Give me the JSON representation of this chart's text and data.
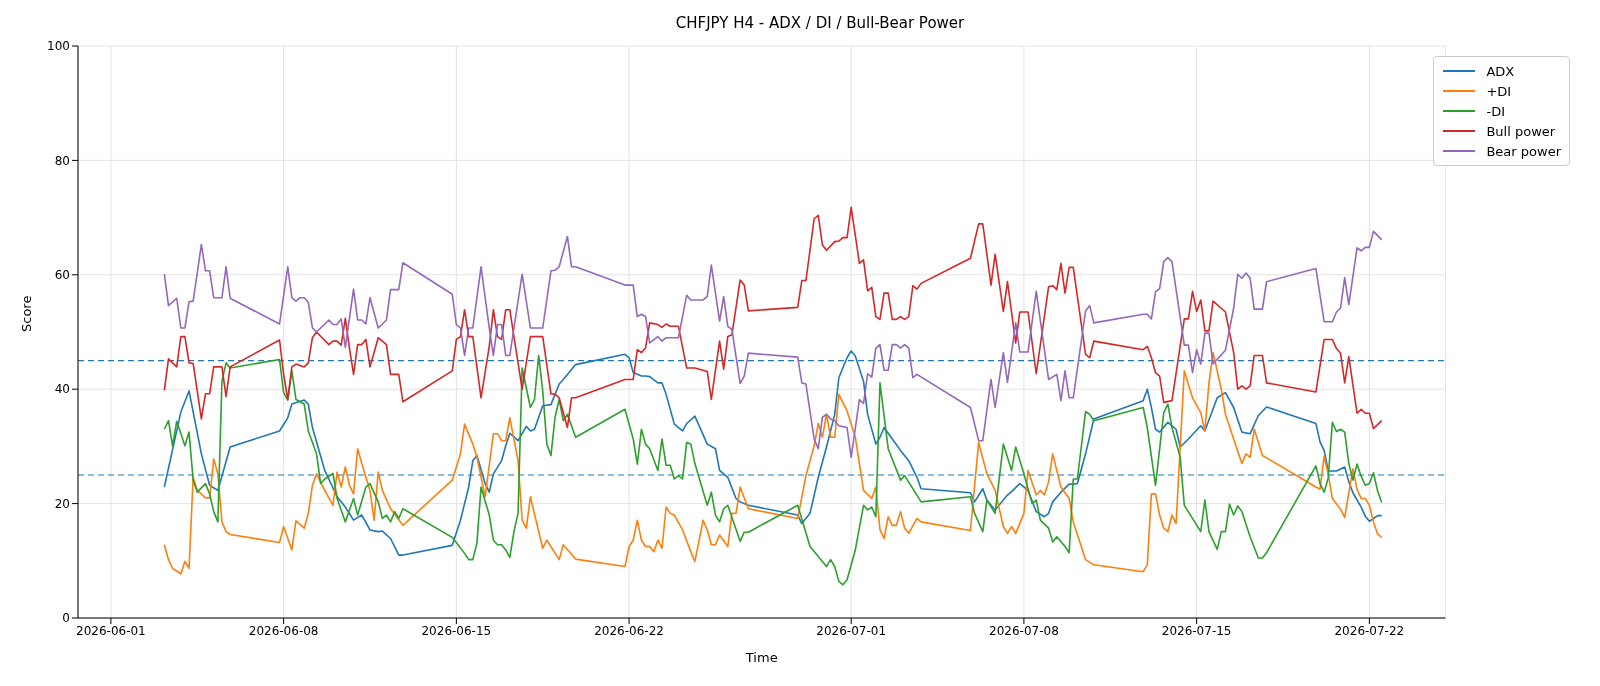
{
  "chart_data": {
    "type": "line",
    "title": "CHFJPY H4 - ADX / DI / Bull-Bear Power",
    "xlabel": "Time",
    "ylabel": "Score",
    "xlim": [
      "2026-05-30T16:00",
      "2026-07-25T02:00"
    ],
    "xticks": [
      "2026-06-01",
      "2026-06-08",
      "2026-06-15",
      "2026-06-22",
      "2026-07-01",
      "2026-07-08",
      "2026-07-15",
      "2026-07-22"
    ],
    "ylim": [
      0,
      100
    ],
    "yticks": [
      0,
      20,
      40,
      60,
      80,
      100
    ],
    "grid": true,
    "legend": "top right",
    "ref_lines": [
      {
        "axis": "y",
        "value": 45,
        "color": "#1f77b4",
        "line_style": "dashed"
      },
      {
        "axis": "y",
        "value": 25,
        "color": "#1f77b4",
        "line_style": "dashed"
      }
    ],
    "series": [
      {
        "name": "ADX",
        "color": "#1f77b4",
        "x": [
          "2026-06-03T04:00",
          "2026-06-03T20:00",
          "2026-06-04T04:00",
          "2026-06-04T16:00",
          "2026-06-05T00:00",
          "2026-06-05T08:00",
          "2026-06-05T20:00",
          "2026-06-07T20:00",
          "2026-06-08T04:00",
          "2026-06-08T08:00",
          "2026-06-08T20:00",
          "2026-06-09T00:00",
          "2026-06-09T04:00",
          "2026-06-09T16:00",
          "2026-06-10T04:00",
          "2026-06-10T12:00",
          "2026-06-10T20:00",
          "2026-06-11T04:00",
          "2026-06-11T12:00",
          "2026-06-11T20:00",
          "2026-06-12T00:00",
          "2026-06-12T08:00",
          "2026-06-12T16:00",
          "2026-06-12T20:00",
          "2026-06-14T20:00",
          "2026-06-15T04:00",
          "2026-06-15T12:00",
          "2026-06-15T16:00",
          "2026-06-15T20:00",
          "2026-06-16T04:00",
          "2026-06-16T08:00",
          "2026-06-16T12:00",
          "2026-06-16T20:00",
          "2026-06-17T00:00",
          "2026-06-17T04:00",
          "2026-06-17T12:00",
          "2026-06-17T20:00",
          "2026-06-18T00:00",
          "2026-06-18T04:00",
          "2026-06-18T12:00",
          "2026-06-18T20:00",
          "2026-06-19T04:00",
          "2026-06-19T08:00",
          "2026-06-19T20:00",
          "2026-06-21T20:00",
          "2026-06-22T00:00",
          "2026-06-22T04:00",
          "2026-06-22T12:00",
          "2026-06-22T16:00",
          "2026-06-22T20:00",
          "2026-06-23T04:00",
          "2026-06-23T08:00",
          "2026-06-23T12:00",
          "2026-06-23T20:00",
          "2026-06-24T04:00",
          "2026-06-24T08:00",
          "2026-06-24T16:00",
          "2026-06-25T04:00",
          "2026-06-25T12:00",
          "2026-06-25T16:00",
          "2026-06-26T00:00",
          "2026-06-26T08:00",
          "2026-06-26T12:00",
          "2026-06-26T20:00",
          "2026-06-28T20:00",
          "2026-06-29T00:00",
          "2026-06-29T08:00",
          "2026-06-29T16:00",
          "2026-06-30T00:00",
          "2026-06-30T08:00",
          "2026-06-30T12:00",
          "2026-06-30T20:00",
          "2026-07-01T00:00",
          "2026-07-01T04:00",
          "2026-07-01T12:00",
          "2026-07-01T16:00",
          "2026-07-02T00:00",
          "2026-07-02T04:00",
          "2026-07-02T08:00",
          "2026-07-02T16:00",
          "2026-07-03T00:00",
          "2026-07-03T08:00",
          "2026-07-03T16:00",
          "2026-07-03T20:00",
          "2026-07-05T20:00",
          "2026-07-06T00:00",
          "2026-07-06T08:00",
          "2026-07-06T12:00",
          "2026-07-06T20:00",
          "2026-07-07T08:00",
          "2026-07-07T12:00",
          "2026-07-07T20:00",
          "2026-07-08T04:00",
          "2026-07-08T12:00",
          "2026-07-08T20:00",
          "2026-07-09T00:00",
          "2026-07-09T04:00",
          "2026-07-09T12:00",
          "2026-07-09T20:00",
          "2026-07-10T00:00",
          "2026-07-10T04:00",
          "2026-07-10T12:00",
          "2026-07-10T20:00",
          "2026-07-12T20:00",
          "2026-07-13T00:00",
          "2026-07-13T04:00",
          "2026-07-13T08:00",
          "2026-07-13T12:00",
          "2026-07-13T20:00",
          "2026-07-14T04:00",
          "2026-07-14T08:00",
          "2026-07-14T16:00",
          "2026-07-15T04:00",
          "2026-07-15T08:00",
          "2026-07-15T20:00",
          "2026-07-16T04:00",
          "2026-07-16T12:00",
          "2026-07-16T20:00",
          "2026-07-17T04:00",
          "2026-07-17T12:00",
          "2026-07-17T20:00",
          "2026-07-19T20:00",
          "2026-07-20T00:00",
          "2026-07-20T04:00",
          "2026-07-20T08:00",
          "2026-07-20T16:00",
          "2026-07-21T00:00",
          "2026-07-21T04:00",
          "2026-07-21T08:00",
          "2026-07-21T16:00",
          "2026-07-21T20:00",
          "2026-07-22T00:00",
          "2026-07-22T04:00",
          "2026-07-22T08:00",
          "2026-07-22T12:00"
        ],
        "values": [
          22.9,
          36.0,
          39.7,
          28.7,
          23.2,
          22.3,
          29.9,
          32.7,
          35.0,
          37.4,
          38.1,
          37.4,
          33.3,
          25.8,
          21.2,
          19.4,
          17.1,
          18.0,
          15.4,
          15.1,
          15.2,
          13.9,
          11.0,
          11.0,
          12.7,
          17.1,
          22.9,
          27.5,
          28.4,
          23.5,
          22.0,
          25.2,
          27.5,
          30.1,
          32.3,
          31.0,
          33.5,
          32.7,
          33.0,
          37.1,
          37.3,
          40.9,
          41.7,
          44.3,
          46.1,
          45.5,
          42.9,
          42.3,
          42.3,
          42.2,
          41.1,
          41.1,
          39.1,
          33.9,
          32.7,
          34.0,
          35.3,
          30.4,
          29.6,
          25.8,
          24.6,
          20.9,
          20.3,
          19.7,
          18.0,
          16.5,
          18.3,
          24.6,
          29.9,
          35.6,
          42.0,
          45.5,
          46.7,
          45.8,
          41.4,
          35.6,
          30.4,
          31.6,
          33.3,
          31.3,
          29.3,
          27.5,
          24.6,
          22.6,
          21.9,
          20.3,
          22.6,
          20.6,
          18.9,
          21.5,
          22.1,
          23.5,
          22.3,
          18.6,
          17.7,
          18.3,
          20.3,
          22.0,
          23.4,
          23.4,
          23.5,
          28.7,
          34.8,
          38.0,
          40.0,
          36.8,
          33.0,
          32.5,
          34.2,
          33.0,
          29.9,
          31.3,
          33.6,
          32.7,
          38.5,
          39.4,
          36.8,
          32.5,
          32.2,
          35.4,
          36.9,
          34.0,
          30.8,
          29.3,
          25.7,
          25.7,
          26.4,
          23.8,
          21.9,
          19.4,
          17.8,
          16.9,
          17.4,
          17.9,
          17.9
        ]
      },
      {
        "name": "+DI",
        "color": "#ff7f0e",
        "x": [
          "2026-06-03T04:00",
          "2026-06-03T08:00",
          "2026-06-03T12:00",
          "2026-06-03T20:00",
          "2026-06-04T00:00",
          "2026-06-04T04:00",
          "2026-06-04T08:00",
          "2026-06-04T12:00",
          "2026-06-04T20:00",
          "2026-06-05T00:00",
          "2026-06-05T04:00",
          "2026-06-05T08:00",
          "2026-06-05T12:00",
          "2026-06-05T16:00",
          "2026-06-05T20:00",
          "2026-06-07T20:00",
          "2026-06-08T00:00",
          "2026-06-08T08:00",
          "2026-06-08T12:00",
          "2026-06-08T20:00",
          "2026-06-09T00:00",
          "2026-06-09T04:00",
          "2026-06-09T08:00",
          "2026-06-09T16:00",
          "2026-06-10T00:00",
          "2026-06-10T04:00",
          "2026-06-10T08:00",
          "2026-06-10T12:00",
          "2026-06-10T16:00",
          "2026-06-10T20:00",
          "2026-06-11T00:00",
          "2026-06-11T04:00",
          "2026-06-11T12:00",
          "2026-06-11T16:00",
          "2026-06-11T20:00",
          "2026-06-12T00:00",
          "2026-06-12T08:00",
          "2026-06-12T20:00",
          "2026-06-14T20:00",
          "2026-06-15T04:00",
          "2026-06-15T08:00",
          "2026-06-15T16:00",
          "2026-06-15T20:00",
          "2026-06-16T04:00",
          "2026-06-16T12:00",
          "2026-06-16T16:00",
          "2026-06-16T20:00",
          "2026-06-17T00:00",
          "2026-06-17T04:00",
          "2026-06-17T12:00",
          "2026-06-17T16:00",
          "2026-06-17T20:00",
          "2026-06-18T00:00",
          "2026-06-18T12:00",
          "2026-06-18T16:00",
          "2026-06-19T04:00",
          "2026-06-19T08:00",
          "2026-06-19T20:00",
          "2026-06-21T20:00",
          "2026-06-22T00:00",
          "2026-06-22T04:00",
          "2026-06-22T08:00",
          "2026-06-22T12:00",
          "2026-06-22T16:00",
          "2026-06-22T20:00",
          "2026-06-23T00:00",
          "2026-06-23T04:00",
          "2026-06-23T08:00",
          "2026-06-23T12:00",
          "2026-06-23T16:00",
          "2026-06-23T20:00",
          "2026-06-24T04:00",
          "2026-06-24T12:00",
          "2026-06-24T16:00",
          "2026-06-25T00:00",
          "2026-06-25T04:00",
          "2026-06-25T08:00",
          "2026-06-25T12:00",
          "2026-06-25T16:00",
          "2026-06-26T00:00",
          "2026-06-26T04:00",
          "2026-06-26T08:00",
          "2026-06-26T12:00",
          "2026-06-26T20:00",
          "2026-06-28T20:00",
          "2026-06-29T04:00",
          "2026-06-29T12:00",
          "2026-06-29T16:00",
          "2026-06-29T20:00",
          "2026-06-30T00:00",
          "2026-06-30T04:00",
          "2026-06-30T08:00",
          "2026-06-30T12:00",
          "2026-06-30T20:00",
          "2026-07-01T04:00",
          "2026-07-01T08:00",
          "2026-07-01T12:00",
          "2026-07-01T20:00",
          "2026-07-02T00:00",
          "2026-07-02T04:00",
          "2026-07-02T08:00",
          "2026-07-02T12:00",
          "2026-07-02T16:00",
          "2026-07-02T20:00",
          "2026-07-03T00:00",
          "2026-07-03T04:00",
          "2026-07-03T08:00",
          "2026-07-03T16:00",
          "2026-07-03T20:00",
          "2026-07-05T20:00",
          "2026-07-06T04:00",
          "2026-07-06T12:00",
          "2026-07-06T20:00",
          "2026-07-07T04:00",
          "2026-07-07T08:00",
          "2026-07-07T12:00",
          "2026-07-07T16:00",
          "2026-07-08T00:00",
          "2026-07-08T04:00",
          "2026-07-08T12:00",
          "2026-07-08T16:00",
          "2026-07-08T20:00",
          "2026-07-09T00:00",
          "2026-07-09T04:00",
          "2026-07-09T12:00",
          "2026-07-09T20:00",
          "2026-07-10T00:00",
          "2026-07-10T12:00",
          "2026-07-10T20:00",
          "2026-07-12T20:00",
          "2026-07-13T00:00",
          "2026-07-13T04:00",
          "2026-07-13T08:00",
          "2026-07-13T12:00",
          "2026-07-13T16:00",
          "2026-07-13T20:00",
          "2026-07-14T00:00",
          "2026-07-14T04:00",
          "2026-07-14T12:00",
          "2026-07-14T20:00",
          "2026-07-15T04:00",
          "2026-07-15T08:00",
          "2026-07-15T12:00",
          "2026-07-15T16:00",
          "2026-07-16T00:00",
          "2026-07-16T04:00",
          "2026-07-16T12:00",
          "2026-07-16T20:00",
          "2026-07-17T00:00",
          "2026-07-17T04:00",
          "2026-07-17T08:00",
          "2026-07-17T16:00",
          "2026-07-17T20:00",
          "2026-07-19T20:00",
          "2026-07-20T00:00",
          "2026-07-20T04:00",
          "2026-07-20T08:00",
          "2026-07-20T12:00",
          "2026-07-20T20:00",
          "2026-07-21T00:00",
          "2026-07-21T08:00",
          "2026-07-21T12:00",
          "2026-07-21T16:00",
          "2026-07-21T20:00",
          "2026-07-22T00:00",
          "2026-07-22T04:00",
          "2026-07-22T08:00",
          "2026-07-22T12:00"
        ],
        "values": [
          12.8,
          10.2,
          8.7,
          7.7,
          9.9,
          8.7,
          24.6,
          22.3,
          21.0,
          21.0,
          27.8,
          25.2,
          16.8,
          15.1,
          14.6,
          13.2,
          16.0,
          11.9,
          17.0,
          15.7,
          18.3,
          23.2,
          25.2,
          22.3,
          19.7,
          25.5,
          22.9,
          26.4,
          23.2,
          21.7,
          29.6,
          27.0,
          22.3,
          17.1,
          25.5,
          22.3,
          19.1,
          16.2,
          24.1,
          28.7,
          33.9,
          30.4,
          28.1,
          21.2,
          32.2,
          32.2,
          31.0,
          31.0,
          35.0,
          27.5,
          17.1,
          15.7,
          21.2,
          12.2,
          13.6,
          10.2,
          12.8,
          10.3,
          9.0,
          12.5,
          13.6,
          17.1,
          13.6,
          12.5,
          12.5,
          11.6,
          13.6,
          12.2,
          19.4,
          18.3,
          18.0,
          15.4,
          11.6,
          9.9,
          17.1,
          15.4,
          12.8,
          12.8,
          14.5,
          12.5,
          18.3,
          18.3,
          22.9,
          19.1,
          17.4,
          24.9,
          30.1,
          34.0,
          31.6,
          35.6,
          31.6,
          31.6,
          39.1,
          36.2,
          31.6,
          27.0,
          22.3,
          20.9,
          22.9,
          15.4,
          13.9,
          17.7,
          16.2,
          16.2,
          18.6,
          15.7,
          14.8,
          17.4,
          16.8,
          15.3,
          30.7,
          25.2,
          22.3,
          16.0,
          14.8,
          16.0,
          14.8,
          18.3,
          25.8,
          21.5,
          22.3,
          21.5,
          23.8,
          28.7,
          22.9,
          20.9,
          16.8,
          10.2,
          9.3,
          8.1,
          9.3,
          21.7,
          21.7,
          18.0,
          15.7,
          15.1,
          18.0,
          16.5,
          43.2,
          38.5,
          35.9,
          32.7,
          41.1,
          46.4,
          40.0,
          35.6,
          31.3,
          27.0,
          28.7,
          28.1,
          33.0,
          28.4,
          28.0,
          22.9,
          22.5,
          28.3,
          25.1,
          20.9,
          19.0,
          17.6,
          26.1,
          22.5,
          20.9,
          20.9,
          19.7,
          16.8,
          14.7,
          14.1
        ]
      },
      {
        "name": "-DI",
        "color": "#2ca02c",
        "x": [
          "2026-06-03T04:00",
          "2026-06-03T08:00",
          "2026-06-03T12:00",
          "2026-06-03T16:00",
          "2026-06-04T00:00",
          "2026-06-04T04:00",
          "2026-06-04T08:00",
          "2026-06-04T12:00",
          "2026-06-04T20:00",
          "2026-06-05T00:00",
          "2026-06-05T04:00",
          "2026-06-05T08:00",
          "2026-06-05T12:00",
          "2026-06-05T16:00",
          "2026-06-05T20:00",
          "2026-06-07T20:00",
          "2026-06-08T00:00",
          "2026-06-08T04:00",
          "2026-06-08T08:00",
          "2026-06-08T12:00",
          "2026-06-08T20:00",
          "2026-06-09T00:00",
          "2026-06-09T08:00",
          "2026-06-09T12:00",
          "2026-06-09T16:00",
          "2026-06-10T00:00",
          "2026-06-10T04:00",
          "2026-06-10T12:00",
          "2026-06-10T20:00",
          "2026-06-11T00:00",
          "2026-06-11T08:00",
          "2026-06-11T12:00",
          "2026-06-11T20:00",
          "2026-06-12T00:00",
          "2026-06-12T04:00",
          "2026-06-12T08:00",
          "2026-06-12T12:00",
          "2026-06-12T16:00",
          "2026-06-12T20:00",
          "2026-06-14T20:00",
          "2026-06-15T08:00",
          "2026-06-15T12:00",
          "2026-06-15T16:00",
          "2026-06-15T20:00",
          "2026-06-16T00:00",
          "2026-06-16T08:00",
          "2026-06-16T12:00",
          "2026-06-16T16:00",
          "2026-06-16T20:00",
          "2026-06-17T00:00",
          "2026-06-17T04:00",
          "2026-06-17T08:00",
          "2026-06-17T12:00",
          "2026-06-17T16:00",
          "2026-06-18T00:00",
          "2026-06-18T04:00",
          "2026-06-18T08:00",
          "2026-06-18T12:00",
          "2026-06-18T16:00",
          "2026-06-18T20:00",
          "2026-06-19T00:00",
          "2026-06-19T04:00",
          "2026-06-19T08:00",
          "2026-06-19T12:00",
          "2026-06-19T20:00",
          "2026-06-21T20:00",
          "2026-06-22T04:00",
          "2026-06-22T08:00",
          "2026-06-22T12:00",
          "2026-06-22T16:00",
          "2026-06-22T20:00",
          "2026-06-23T04:00",
          "2026-06-23T08:00",
          "2026-06-23T12:00",
          "2026-06-23T16:00",
          "2026-06-23T20:00",
          "2026-06-24T00:00",
          "2026-06-24T04:00",
          "2026-06-24T08:00",
          "2026-06-24T12:00",
          "2026-06-24T16:00",
          "2026-06-25T04:00",
          "2026-06-25T08:00",
          "2026-06-25T12:00",
          "2026-06-25T16:00",
          "2026-06-25T20:00",
          "2026-06-26T00:00",
          "2026-06-26T12:00",
          "2026-06-26T16:00",
          "2026-06-26T20:00",
          "2026-06-28T20:00",
          "2026-06-29T08:00",
          "2026-06-30T00:00",
          "2026-06-30T04:00",
          "2026-06-30T08:00",
          "2026-06-30T12:00",
          "2026-06-30T16:00",
          "2026-06-30T20:00",
          "2026-07-01T04:00",
          "2026-07-01T12:00",
          "2026-07-01T16:00",
          "2026-07-01T20:00",
          "2026-07-02T00:00",
          "2026-07-02T04:00",
          "2026-07-02T12:00",
          "2026-07-03T00:00",
          "2026-07-03T04:00",
          "2026-07-03T20:00",
          "2026-07-05T20:00",
          "2026-07-06T00:00",
          "2026-07-06T08:00",
          "2026-07-06T12:00",
          "2026-07-06T20:00",
          "2026-07-07T04:00",
          "2026-07-07T12:00",
          "2026-07-07T16:00",
          "2026-07-08T00:00",
          "2026-07-08T08:00",
          "2026-07-08T12:00",
          "2026-07-08T16:00",
          "2026-07-09T00:00",
          "2026-07-09T04:00",
          "2026-07-09T08:00",
          "2026-07-09T16:00",
          "2026-07-09T20:00",
          "2026-07-10T00:00",
          "2026-07-10T04:00",
          "2026-07-10T12:00",
          "2026-07-10T16:00",
          "2026-07-10T20:00",
          "2026-07-12T20:00",
          "2026-07-13T00:00",
          "2026-07-13T08:00",
          "2026-07-13T16:00",
          "2026-07-13T20:00",
          "2026-07-14T00:00",
          "2026-07-14T08:00",
          "2026-07-14T12:00",
          "2026-07-15T04:00",
          "2026-07-15T08:00",
          "2026-07-15T12:00",
          "2026-07-15T20:00",
          "2026-07-16T00:00",
          "2026-07-16T04:00",
          "2026-07-16T08:00",
          "2026-07-16T12:00",
          "2026-07-16T16:00",
          "2026-07-16T20:00",
          "2026-07-17T04:00",
          "2026-07-17T12:00",
          "2026-07-17T16:00",
          "2026-07-17T20:00",
          "2026-07-19T20:00",
          "2026-07-20T00:00",
          "2026-07-20T04:00",
          "2026-07-20T08:00",
          "2026-07-20T12:00",
          "2026-07-20T16:00",
          "2026-07-20T20:00",
          "2026-07-21T00:00",
          "2026-07-21T04:00",
          "2026-07-21T08:00",
          "2026-07-21T12:00",
          "2026-07-21T16:00",
          "2026-07-21T20:00",
          "2026-07-22T00:00",
          "2026-07-22T04:00",
          "2026-07-22T08:00",
          "2026-07-22T12:00"
        ],
        "values": [
          33.0,
          34.5,
          30.1,
          34.4,
          30.1,
          32.5,
          24.1,
          22.0,
          23.5,
          21.7,
          18.6,
          16.8,
          41.4,
          44.6,
          43.7,
          45.2,
          39.4,
          38.1,
          43.2,
          38.2,
          37.4,
          32.7,
          28.7,
          23.5,
          24.3,
          25.3,
          20.9,
          16.8,
          20.9,
          18.0,
          22.9,
          23.5,
          20.3,
          17.4,
          18.0,
          16.8,
          18.6,
          17.4,
          19.1,
          14.1,
          11.3,
          10.2,
          10.2,
          13.1,
          22.9,
          18.0,
          13.6,
          12.8,
          12.8,
          11.9,
          10.6,
          15.1,
          18.3,
          43.7,
          36.8,
          38.2,
          45.9,
          39.7,
          30.4,
          28.4,
          35.1,
          38.2,
          34.5,
          35.6,
          31.6,
          36.5,
          31.3,
          26.9,
          33.0,
          30.4,
          29.6,
          25.8,
          31.3,
          26.7,
          26.7,
          24.3,
          24.9,
          24.3,
          30.7,
          30.4,
          27.0,
          19.7,
          22.0,
          18.0,
          16.8,
          19.1,
          19.7,
          13.4,
          15.0,
          15.0,
          19.7,
          12.5,
          9.0,
          10.2,
          9.0,
          6.4,
          5.8,
          6.7,
          11.9,
          19.7,
          18.9,
          19.4,
          17.7,
          41.1,
          29.6,
          24.1,
          24.9,
          20.3,
          21.2,
          18.3,
          15.1,
          20.6,
          18.3,
          30.4,
          25.8,
          29.9,
          25.2,
          20.0,
          20.6,
          17.1,
          15.7,
          13.3,
          14.2,
          12.5,
          11.4,
          24.3,
          24.3,
          36.1,
          35.6,
          34.5,
          36.8,
          33.3,
          23.2,
          35.9,
          37.4,
          33.3,
          28.1,
          19.7,
          15.1,
          20.6,
          15.1,
          12.0,
          15.1,
          15.1,
          19.9,
          18.0,
          19.6,
          18.6,
          14.2,
          10.5,
          10.5,
          11.4,
          26.6,
          23.5,
          22.0,
          24.5,
          34.2,
          32.6,
          33.0,
          32.5,
          27.0,
          24.1,
          26.9,
          24.8,
          23.2,
          23.5,
          25.4,
          22.2,
          20.2
        ]
      },
      {
        "name": "Bull power",
        "color": "#d62728",
        "x": [
          "2026-06-03T04:00",
          "2026-06-03T08:00",
          "2026-06-03T16:00",
          "2026-06-03T20:00",
          "2026-06-04T00:00",
          "2026-06-04T04:00",
          "2026-06-04T08:00",
          "2026-06-04T16:00",
          "2026-06-04T20:00",
          "2026-06-05T00:00",
          "2026-06-05T04:00",
          "2026-06-05T12:00",
          "2026-06-05T16:00",
          "2026-06-05T20:00",
          "2026-06-07T20:00",
          "2026-06-08T00:00",
          "2026-06-08T04:00",
          "2026-06-08T08:00",
          "2026-06-08T12:00",
          "2026-06-08T20:00",
          "2026-06-09T00:00",
          "2026-06-09T04:00",
          "2026-06-09T08:00",
          "2026-06-09T20:00",
          "2026-06-10T00:00",
          "2026-06-10T04:00",
          "2026-06-10T08:00",
          "2026-06-10T12:00",
          "2026-06-10T16:00",
          "2026-06-10T20:00",
          "2026-06-11T00:00",
          "2026-06-11T04:00",
          "2026-06-11T08:00",
          "2026-06-11T12:00",
          "2026-06-11T20:00",
          "2026-06-12T04:00",
          "2026-06-12T08:00",
          "2026-06-12T16:00",
          "2026-06-12T20:00",
          "2026-06-14T20:00",
          "2026-06-15T00:00",
          "2026-06-15T04:00",
          "2026-06-15T08:00",
          "2026-06-15T12:00",
          "2026-06-15T16:00",
          "2026-06-16T00:00",
          "2026-06-16T08:00",
          "2026-06-16T12:00",
          "2026-06-16T16:00",
          "2026-06-16T20:00",
          "2026-06-17T00:00",
          "2026-06-17T04:00",
          "2026-06-17T08:00",
          "2026-06-17T16:00",
          "2026-06-18T00:00",
          "2026-06-18T12:00",
          "2026-06-18T20:00",
          "2026-06-19T00:00",
          "2026-06-19T04:00",
          "2026-06-19T12:00",
          "2026-06-19T16:00",
          "2026-06-19T20:00",
          "2026-06-21T20:00",
          "2026-06-22T04:00",
          "2026-06-22T08:00",
          "2026-06-22T12:00",
          "2026-06-22T16:00",
          "2026-06-22T20:00",
          "2026-06-23T04:00",
          "2026-06-23T08:00",
          "2026-06-23T12:00",
          "2026-06-23T16:00",
          "2026-06-24T00:00",
          "2026-06-24T08:00",
          "2026-06-24T16:00",
          "2026-06-25T04:00",
          "2026-06-25T08:00",
          "2026-06-25T16:00",
          "2026-06-25T20:00",
          "2026-06-26T00:00",
          "2026-06-26T04:00",
          "2026-06-26T12:00",
          "2026-06-26T16:00",
          "2026-06-26T20:00",
          "2026-06-28T20:00",
          "2026-06-29T00:00",
          "2026-06-29T04:00",
          "2026-06-29T12:00",
          "2026-06-29T16:00",
          "2026-06-29T20:00",
          "2026-06-30T00:00",
          "2026-06-30T08:00",
          "2026-06-30T12:00",
          "2026-06-30T16:00",
          "2026-06-30T20:00",
          "2026-07-01T00:00",
          "2026-07-01T08:00",
          "2026-07-01T12:00",
          "2026-07-01T16:00",
          "2026-07-01T20:00",
          "2026-07-02T00:00",
          "2026-07-02T04:00",
          "2026-07-02T08:00",
          "2026-07-02T12:00",
          "2026-07-02T16:00",
          "2026-07-02T20:00",
          "2026-07-03T00:00",
          "2026-07-03T04:00",
          "2026-07-03T08:00",
          "2026-07-03T12:00",
          "2026-07-03T16:00",
          "2026-07-03T20:00",
          "2026-07-05T20:00",
          "2026-07-06T04:00",
          "2026-07-06T08:00",
          "2026-07-06T16:00",
          "2026-07-06T20:00",
          "2026-07-07T04:00",
          "2026-07-07T08:00",
          "2026-07-07T16:00",
          "2026-07-07T20:00",
          "2026-07-08T04:00",
          "2026-07-08T12:00",
          "2026-07-09T00:00",
          "2026-07-09T04:00",
          "2026-07-09T08:00",
          "2026-07-09T12:00",
          "2026-07-09T16:00",
          "2026-07-09T20:00",
          "2026-07-10T00:00",
          "2026-07-10T12:00",
          "2026-07-10T16:00",
          "2026-07-10T20:00",
          "2026-07-12T20:00",
          "2026-07-13T00:00",
          "2026-07-13T04:00",
          "2026-07-13T08:00",
          "2026-07-13T12:00",
          "2026-07-13T16:00",
          "2026-07-14T00:00",
          "2026-07-14T12:00",
          "2026-07-14T16:00",
          "2026-07-14T20:00",
          "2026-07-15T00:00",
          "2026-07-15T04:00",
          "2026-07-15T08:00",
          "2026-07-15T12:00",
          "2026-07-15T16:00",
          "2026-07-16T04:00",
          "2026-07-16T12:00",
          "2026-07-16T16:00",
          "2026-07-16T20:00",
          "2026-07-17T00:00",
          "2026-07-17T04:00",
          "2026-07-17T08:00",
          "2026-07-17T16:00",
          "2026-07-17T20:00",
          "2026-07-19T20:00",
          "2026-07-20T04:00",
          "2026-07-20T12:00",
          "2026-07-20T16:00",
          "2026-07-20T20:00",
          "2026-07-21T00:00",
          "2026-07-21T04:00",
          "2026-07-21T12:00",
          "2026-07-21T16:00",
          "2026-07-21T20:00",
          "2026-07-22T00:00",
          "2026-07-22T04:00",
          "2026-07-22T12:00"
        ],
        "values": [
          39.8,
          45.3,
          43.9,
          49.2,
          49.2,
          44.6,
          44.5,
          34.8,
          39.2,
          39.2,
          43.9,
          43.9,
          38.7,
          43.9,
          48.6,
          42.6,
          38.2,
          43.9,
          44.4,
          43.9,
          44.6,
          49.0,
          50.0,
          47.8,
          48.4,
          48.4,
          47.7,
          52.4,
          47.2,
          42.6,
          47.8,
          47.8,
          48.7,
          43.9,
          49.0,
          47.8,
          42.6,
          42.6,
          37.8,
          43.2,
          48.7,
          49.2,
          53.9,
          49.2,
          49.2,
          38.5,
          47.5,
          53.9,
          49.2,
          48.7,
          53.9,
          53.9,
          49.2,
          40.0,
          49.2,
          49.2,
          39.2,
          39.1,
          38.5,
          33.3,
          38.5,
          38.5,
          41.7,
          41.7,
          46.9,
          46.4,
          47.2,
          51.6,
          51.3,
          50.8,
          51.4,
          51.0,
          51.0,
          43.7,
          43.7,
          43.1,
          38.2,
          48.4,
          43.5,
          49.2,
          49.5,
          59.1,
          58.2,
          53.7,
          54.3,
          59.0,
          59.0,
          69.8,
          70.4,
          65.2,
          64.3,
          65.8,
          65.9,
          66.5,
          66.5,
          71.8,
          62.0,
          62.6,
          57.2,
          57.8,
          52.7,
          52.2,
          56.8,
          56.8,
          52.2,
          52.2,
          52.7,
          52.2,
          52.7,
          58.1,
          57.5,
          58.5,
          62.9,
          68.9,
          68.9,
          58.2,
          63.6,
          53.6,
          58.8,
          48.1,
          53.5,
          53.5,
          42.7,
          57.9,
          58.1,
          57.4,
          62.0,
          56.8,
          61.3,
          61.3,
          46.1,
          45.5,
          48.4,
          46.9,
          47.5,
          45.5,
          42.9,
          42.3,
          37.7,
          38.0,
          52.3,
          52.3,
          57.1,
          53.6,
          55.6,
          50.2,
          50.2,
          55.4,
          53.5,
          46.4,
          40.0,
          40.6,
          40.0,
          40.6,
          45.9,
          45.9,
          41.1,
          39.5,
          48.7,
          48.7,
          47.1,
          46.3,
          41.1,
          45.7,
          35.8,
          36.5,
          35.8,
          35.8,
          33.1,
          34.5
        ]
      },
      {
        "name": "Bear power",
        "color": "#9467bd",
        "x": [
          "2026-06-03T04:00",
          "2026-06-03T08:00",
          "2026-06-03T16:00",
          "2026-06-03T20:00",
          "2026-06-04T00:00",
          "2026-06-04T04:00",
          "2026-06-04T08:00",
          "2026-06-04T16:00",
          "2026-06-04T20:00",
          "2026-06-05T00:00",
          "2026-06-05T04:00",
          "2026-06-05T12:00",
          "2026-06-05T16:00",
          "2026-06-05T20:00",
          "2026-06-07T20:00",
          "2026-06-08T04:00",
          "2026-06-08T08:00",
          "2026-06-08T12:00",
          "2026-06-08T16:00",
          "2026-06-08T20:00",
          "2026-06-09T00:00",
          "2026-06-09T04:00",
          "2026-06-09T08:00",
          "2026-06-09T20:00",
          "2026-06-10T00:00",
          "2026-06-10T04:00",
          "2026-06-10T08:00",
          "2026-06-10T12:00",
          "2026-06-10T20:00",
          "2026-06-11T00:00",
          "2026-06-11T04:00",
          "2026-06-11T08:00",
          "2026-06-11T12:00",
          "2026-06-11T20:00",
          "2026-06-12T04:00",
          "2026-06-12T08:00",
          "2026-06-12T16:00",
          "2026-06-12T20:00",
          "2026-06-14T20:00",
          "2026-06-15T00:00",
          "2026-06-15T04:00",
          "2026-06-15T08:00",
          "2026-06-15T12:00",
          "2026-06-15T16:00",
          "2026-06-16T00:00",
          "2026-06-16T08:00",
          "2026-06-16T12:00",
          "2026-06-16T16:00",
          "2026-06-16T20:00",
          "2026-06-17T00:00",
          "2026-06-17T04:00",
          "2026-06-17T08:00",
          "2026-06-17T16:00",
          "2026-06-18T00:00",
          "2026-06-18T12:00",
          "2026-06-18T20:00",
          "2026-06-19T00:00",
          "2026-06-19T04:00",
          "2026-06-19T12:00",
          "2026-06-19T16:00",
          "2026-06-19T20:00",
          "2026-06-21T20:00",
          "2026-06-22T04:00",
          "2026-06-22T08:00",
          "2026-06-22T12:00",
          "2026-06-22T16:00",
          "2026-06-22T20:00",
          "2026-06-23T04:00",
          "2026-06-23T08:00",
          "2026-06-23T12:00",
          "2026-06-23T16:00",
          "2026-06-24T00:00",
          "2026-06-24T08:00",
          "2026-06-24T12:00",
          "2026-06-25T00:00",
          "2026-06-25T04:00",
          "2026-06-25T08:00",
          "2026-06-25T16:00",
          "2026-06-25T20:00",
          "2026-06-26T00:00",
          "2026-06-26T04:00",
          "2026-06-26T12:00",
          "2026-06-26T16:00",
          "2026-06-26T20:00",
          "2026-06-28T20:00",
          "2026-06-29T00:00",
          "2026-06-29T04:00",
          "2026-06-29T12:00",
          "2026-06-29T16:00",
          "2026-06-29T20:00",
          "2026-06-30T00:00",
          "2026-06-30T04:00",
          "2026-06-30T08:00",
          "2026-06-30T12:00",
          "2026-06-30T20:00",
          "2026-07-01T00:00",
          "2026-07-01T08:00",
          "2026-07-01T12:00",
          "2026-07-01T16:00",
          "2026-07-01T20:00",
          "2026-07-02T00:00",
          "2026-07-02T04:00",
          "2026-07-02T08:00",
          "2026-07-02T12:00",
          "2026-07-02T16:00",
          "2026-07-02T20:00",
          "2026-07-03T00:00",
          "2026-07-03T04:00",
          "2026-07-03T08:00",
          "2026-07-03T12:00",
          "2026-07-03T16:00",
          "2026-07-05T20:00",
          "2026-07-06T04:00",
          "2026-07-06T08:00",
          "2026-07-06T16:00",
          "2026-07-06T20:00",
          "2026-07-07T04:00",
          "2026-07-07T08:00",
          "2026-07-07T16:00",
          "2026-07-07T20:00",
          "2026-07-08T04:00",
          "2026-07-08T12:00",
          "2026-07-09T00:00",
          "2026-07-09T08:00",
          "2026-07-09T12:00",
          "2026-07-09T16:00",
          "2026-07-09T20:00",
          "2026-07-10T00:00",
          "2026-07-10T12:00",
          "2026-07-10T16:00",
          "2026-07-10T20:00",
          "2026-07-12T20:00",
          "2026-07-13T00:00",
          "2026-07-13T04:00",
          "2026-07-13T08:00",
          "2026-07-13T12:00",
          "2026-07-13T16:00",
          "2026-07-13T20:00",
          "2026-07-14T00:00",
          "2026-07-14T12:00",
          "2026-07-14T16:00",
          "2026-07-14T20:00",
          "2026-07-15T00:00",
          "2026-07-15T04:00",
          "2026-07-15T08:00",
          "2026-07-15T12:00",
          "2026-07-15T16:00",
          "2026-07-16T04:00",
          "2026-07-16T12:00",
          "2026-07-16T16:00",
          "2026-07-16T20:00",
          "2026-07-17T00:00",
          "2026-07-17T04:00",
          "2026-07-17T08:00",
          "2026-07-17T16:00",
          "2026-07-17T20:00",
          "2026-07-19T20:00",
          "2026-07-20T04:00",
          "2026-07-20T12:00",
          "2026-07-20T16:00",
          "2026-07-20T20:00",
          "2026-07-21T00:00",
          "2026-07-21T04:00",
          "2026-07-21T12:00",
          "2026-07-21T16:00",
          "2026-07-21T20:00",
          "2026-07-22T00:00",
          "2026-07-22T04:00",
          "2026-07-22T12:00"
        ],
        "values": [
          60.1,
          54.6,
          55.9,
          50.7,
          50.7,
          55.3,
          55.4,
          65.3,
          60.7,
          60.7,
          56.0,
          56.0,
          61.4,
          55.9,
          51.4,
          61.4,
          56.0,
          55.4,
          56.0,
          56.0,
          55.2,
          50.7,
          50.0,
          52.1,
          51.3,
          51.3,
          52.3,
          47.3,
          57.5,
          52.1,
          52.1,
          51.4,
          56.0,
          50.7,
          52.1,
          57.4,
          57.4,
          62.1,
          56.6,
          51.3,
          50.7,
          45.9,
          50.7,
          50.7,
          61.4,
          50.7,
          45.9,
          51.3,
          51.3,
          45.9,
          45.9,
          50.7,
          60.1,
          50.7,
          50.7,
          60.7,
          60.8,
          61.4,
          66.7,
          61.4,
          61.4,
          58.2,
          58.2,
          52.7,
          53.1,
          52.7,
          48.1,
          49.2,
          48.4,
          49.0,
          49.0,
          49.0,
          56.4,
          55.6,
          55.6,
          56.2,
          61.7,
          51.9,
          56.2,
          51.0,
          50.4,
          41.0,
          42.3,
          46.3,
          45.6,
          41.1,
          40.9,
          31.3,
          29.6,
          35.1,
          35.6,
          34.8,
          34.5,
          33.6,
          33.3,
          28.1,
          38.2,
          37.5,
          42.7,
          42.1,
          47.2,
          47.8,
          43.3,
          43.3,
          47.8,
          47.8,
          47.2,
          47.8,
          47.2,
          42.0,
          42.6,
          36.8,
          31.0,
          31.0,
          41.7,
          36.8,
          46.4,
          41.2,
          51.6,
          46.5,
          46.5,
          57.1,
          41.7,
          42.6,
          38.0,
          43.2,
          38.5,
          38.5,
          53.7,
          54.6,
          51.6,
          53.1,
          53.1,
          52.3,
          57.0,
          57.6,
          62.3,
          63.0,
          62.3,
          47.7,
          47.7,
          42.9,
          46.9,
          44.4,
          49.8,
          49.8,
          44.4,
          46.8,
          54.2,
          60.1,
          59.4,
          60.3,
          59.4,
          54.0,
          54.0,
          58.8,
          61.1,
          51.8,
          51.8,
          53.5,
          54.2,
          59.5,
          54.8,
          64.7,
          64.2,
          64.8,
          64.8,
          67.6,
          66.1
        ]
      }
    ]
  }
}
